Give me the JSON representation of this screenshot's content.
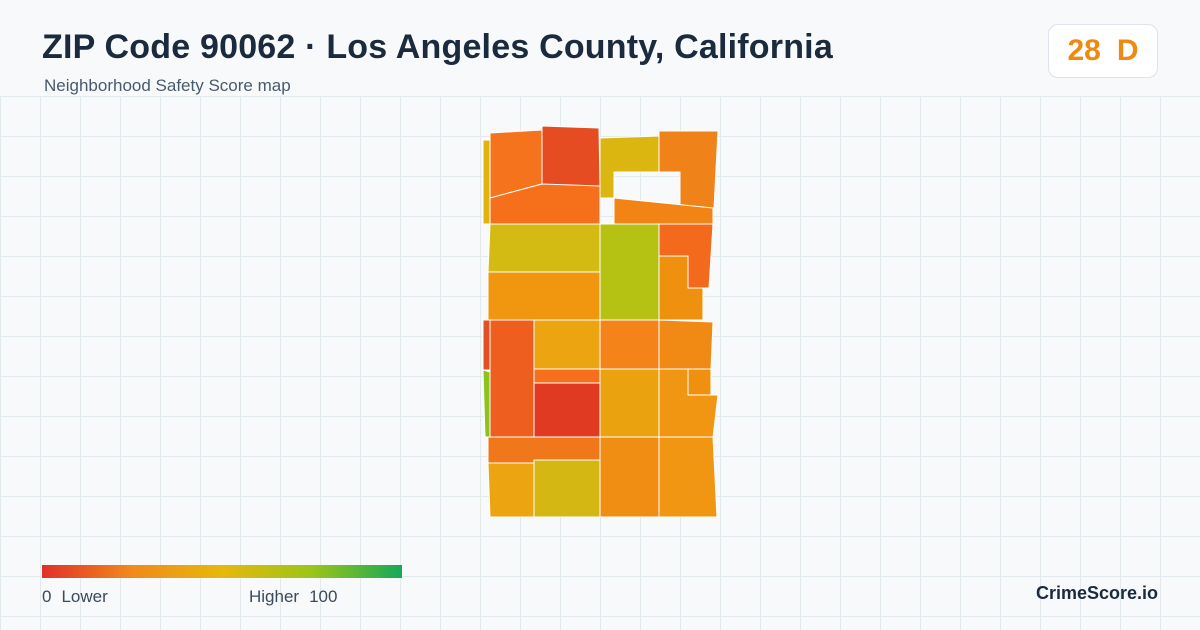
{
  "header": {
    "title": "ZIP Code 90062 · Los Angeles County, California",
    "subtitle": "Neighborhood Safety Score map"
  },
  "score_badge": {
    "score": "28",
    "grade": "D",
    "color": "#ee8a12"
  },
  "map": {
    "tracts": [
      {
        "id": "tract-1",
        "score": 30,
        "color": "#f6731e"
      },
      {
        "id": "tract-2",
        "score": 18,
        "color": "#e54c22"
      },
      {
        "id": "tract-3",
        "score": 44,
        "color": "#dbb611"
      },
      {
        "id": "tract-4",
        "score": 34,
        "color": "#ef8218"
      },
      {
        "id": "tract-5",
        "score": 30,
        "color": "#f6701c"
      },
      {
        "id": "tract-6",
        "score": 34,
        "color": "#f28416"
      },
      {
        "id": "tract-7",
        "score": 46,
        "color": "#d4bb13"
      },
      {
        "id": "tract-8",
        "score": 52,
        "color": "#b5c214"
      },
      {
        "id": "tract-9",
        "score": 27,
        "color": "#f36a1d"
      },
      {
        "id": "tract-10",
        "score": 36,
        "color": "#f0960f"
      },
      {
        "id": "tract-11",
        "score": 35,
        "color": "#f0900f"
      },
      {
        "id": "tract-12",
        "score": 23,
        "color": "#ed5e1f"
      },
      {
        "id": "tract-13",
        "score": 38,
        "color": "#eda411"
      },
      {
        "id": "tract-14",
        "score": 33,
        "color": "#f48419"
      },
      {
        "id": "tract-15",
        "score": 34,
        "color": "#f08a15"
      },
      {
        "id": "tract-16",
        "score": 13,
        "color": "#e13a22"
      },
      {
        "id": "tract-17",
        "score": 40,
        "color": "#eaa20f"
      },
      {
        "id": "tract-18",
        "score": 36,
        "color": "#f09612"
      },
      {
        "id": "tract-19",
        "score": 30,
        "color": "#f0781a"
      },
      {
        "id": "tract-20",
        "score": 39,
        "color": "#eca510"
      },
      {
        "id": "tract-21",
        "score": 44,
        "color": "#d4b713"
      },
      {
        "id": "tract-22",
        "score": 35,
        "color": "#f08e14"
      },
      {
        "id": "tract-23",
        "score": 36,
        "color": "#f19612"
      },
      {
        "id": "tract-24",
        "score": 44,
        "color": "#e0b40f"
      },
      {
        "id": "tract-25",
        "score": 20,
        "color": "#e24f22"
      },
      {
        "id": "tract-26",
        "score": 55,
        "color": "#8cc21c"
      }
    ]
  },
  "legend": {
    "min": "0",
    "min_label": "Lower",
    "max_label": "Higher",
    "max": "100",
    "colors": [
      "#e0302a",
      "#f08a1c",
      "#e6b80c",
      "#9cc418",
      "#16a85a"
    ]
  },
  "brand": "CrimeScore.io"
}
